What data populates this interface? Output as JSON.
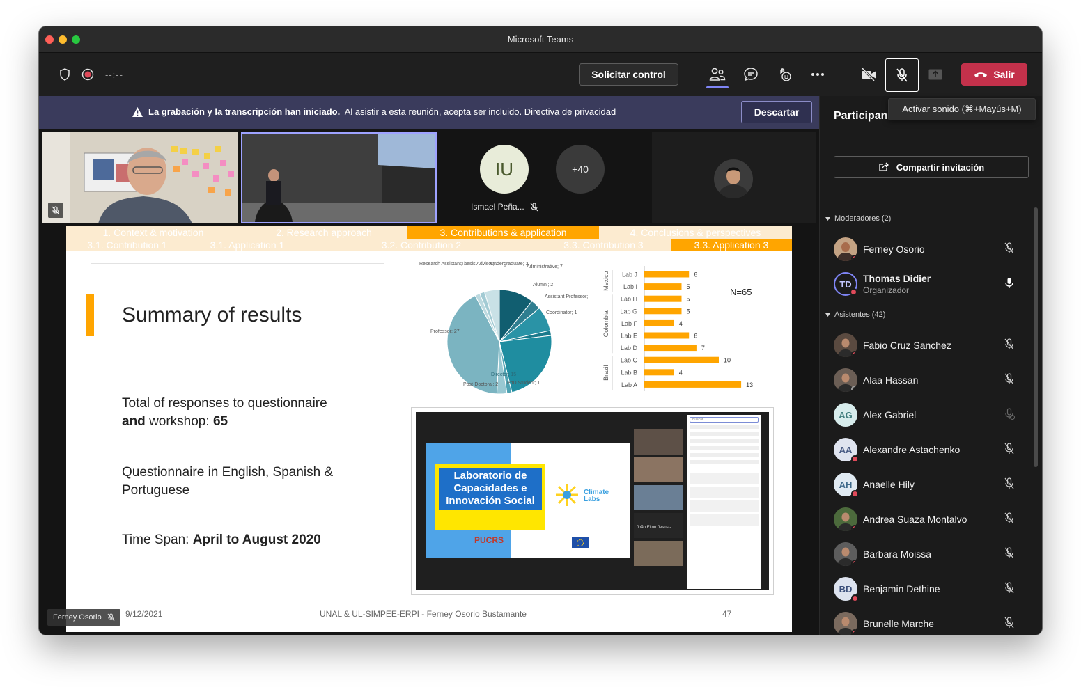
{
  "window": {
    "title": "Microsoft Teams"
  },
  "toolbar": {
    "timer": "--:--",
    "request_control_label": "Solicitar control",
    "leave_label": "Salir",
    "unmute_tooltip": "Activar sonido (⌘+Mayús+M)"
  },
  "banner": {
    "bold_text": "La grabación y la transcripción han iniciado.",
    "text": "Al asistir a esta reunión, acepta ser incluido.",
    "link": "Directiva de privacidad",
    "dismiss_label": "Descartar"
  },
  "video_tiles": {
    "iu_initials": "IU",
    "iu_name": "Ismael Peña...",
    "more_count": "+40"
  },
  "slide": {
    "nav_row1": [
      "1. Context & motivation",
      "2. Research approach",
      "3. Contributions & application",
      "4. Conclusions & perspectives"
    ],
    "nav_row2": [
      "3.1. Contribution 1",
      "3.1. Application 1",
      "3.2. Contribution 2",
      "3.3. Contribution 3",
      "3.3. Application 3"
    ],
    "title": "Summary of results",
    "p1_normal": "Total of responses to questionnaire",
    "p1_bold": "and",
    "p1_rest": "workshop:",
    "p1_num": "65",
    "p2_line1": "Questionnaire in English, Spanish &",
    "p2_line2": "Portuguese",
    "p3_normal": "Time Span:",
    "p3_bold": "April to August 2020",
    "footer_date": "9/12/2021",
    "footer_center": "UNAL & UL-SIMPEE-ERPI - Ferney Osorio Bustamante",
    "footer_page": "47",
    "n_label": "N=65",
    "embedded": {
      "poster_line1": "Laboratorio de",
      "poster_line2": "Capacidades e",
      "poster_line3": "Innovación Social",
      "climate": "Climate",
      "labs": "Labs",
      "pucrs": "PUCRS",
      "video_name": "João Elton Jesus -...",
      "search_placeholder": "Buscar"
    }
  },
  "chart_data": [
    {
      "type": "pie",
      "categories": [
        "Director",
        "PhD Student",
        "Post-Doctoral",
        "Professor",
        "Research Assistant",
        "Thesis Advisor",
        "Undergraduate",
        "Administrative",
        "Alumni",
        "Assistant Professor",
        "Coordinator"
      ],
      "slice_labels": [
        "Director; 15",
        "PhD Student; 1",
        "Post-Doctoral; 2",
        "Professor; 27",
        "Research Assistant; 1",
        "Thesis Advisor; 1",
        "Undergraduate; 3",
        "Administrative; 7",
        "Alumni; 2",
        "Assistant Professor; 5",
        "Coordinator; 1"
      ],
      "values": [
        15,
        1,
        2,
        27,
        1,
        1,
        3,
        7,
        2,
        5,
        1
      ]
    },
    {
      "type": "bar",
      "orientation": "horizontal",
      "categories": [
        "Lab J",
        "Lab I",
        "Lab H",
        "Lab G",
        "Lab F",
        "Lab E",
        "Lab D",
        "Lab C",
        "Lab B",
        "Lab A"
      ],
      "values": [
        6,
        5,
        5,
        5,
        4,
        6,
        7,
        10,
        4,
        13
      ],
      "groups": [
        {
          "name": "Mexico",
          "categories": [
            "Lab J",
            "Lab I"
          ]
        },
        {
          "name": "Colombia",
          "categories": [
            "Lab H",
            "Lab G",
            "Lab F",
            "Lab E",
            "Lab D"
          ]
        },
        {
          "name": "Brazil",
          "categories": [
            "Lab C",
            "Lab B",
            "Lab A"
          ]
        }
      ],
      "color": "#ffa500"
    }
  ],
  "presenter": {
    "name": "Ferney Osorio"
  },
  "participants": {
    "title": "Participan",
    "share_label": "Compartir invitación",
    "moderators_label": "Moderadores (2)",
    "attendees_label": "Asistentes (42)",
    "moderators": [
      {
        "name": "Ferney Osorio",
        "initials": "",
        "role": "",
        "mic": "muted"
      },
      {
        "name": "Thomas Didier",
        "initials": "TD",
        "role": "Organizador",
        "mic": "on"
      }
    ],
    "attendees": [
      {
        "name": "Fabio Cruz Sanchez",
        "initials": "",
        "mic": "muted"
      },
      {
        "name": "Alaa Hassan",
        "initials": "",
        "mic": "muted"
      },
      {
        "name": "Alex Gabriel",
        "initials": "AG",
        "mic": "unavailable"
      },
      {
        "name": "Alexandre Astachenko",
        "initials": "AA",
        "mic": "muted"
      },
      {
        "name": "Anaelle Hily",
        "initials": "AH",
        "mic": "muted"
      },
      {
        "name": "Andrea Suaza Montalvo",
        "initials": "",
        "mic": "muted"
      },
      {
        "name": "Barbara Moissa",
        "initials": "",
        "mic": "muted"
      },
      {
        "name": "Benjamin Dethine",
        "initials": "BD",
        "mic": "muted"
      },
      {
        "name": "Brunelle Marche",
        "initials": "",
        "mic": "muted"
      }
    ]
  }
}
